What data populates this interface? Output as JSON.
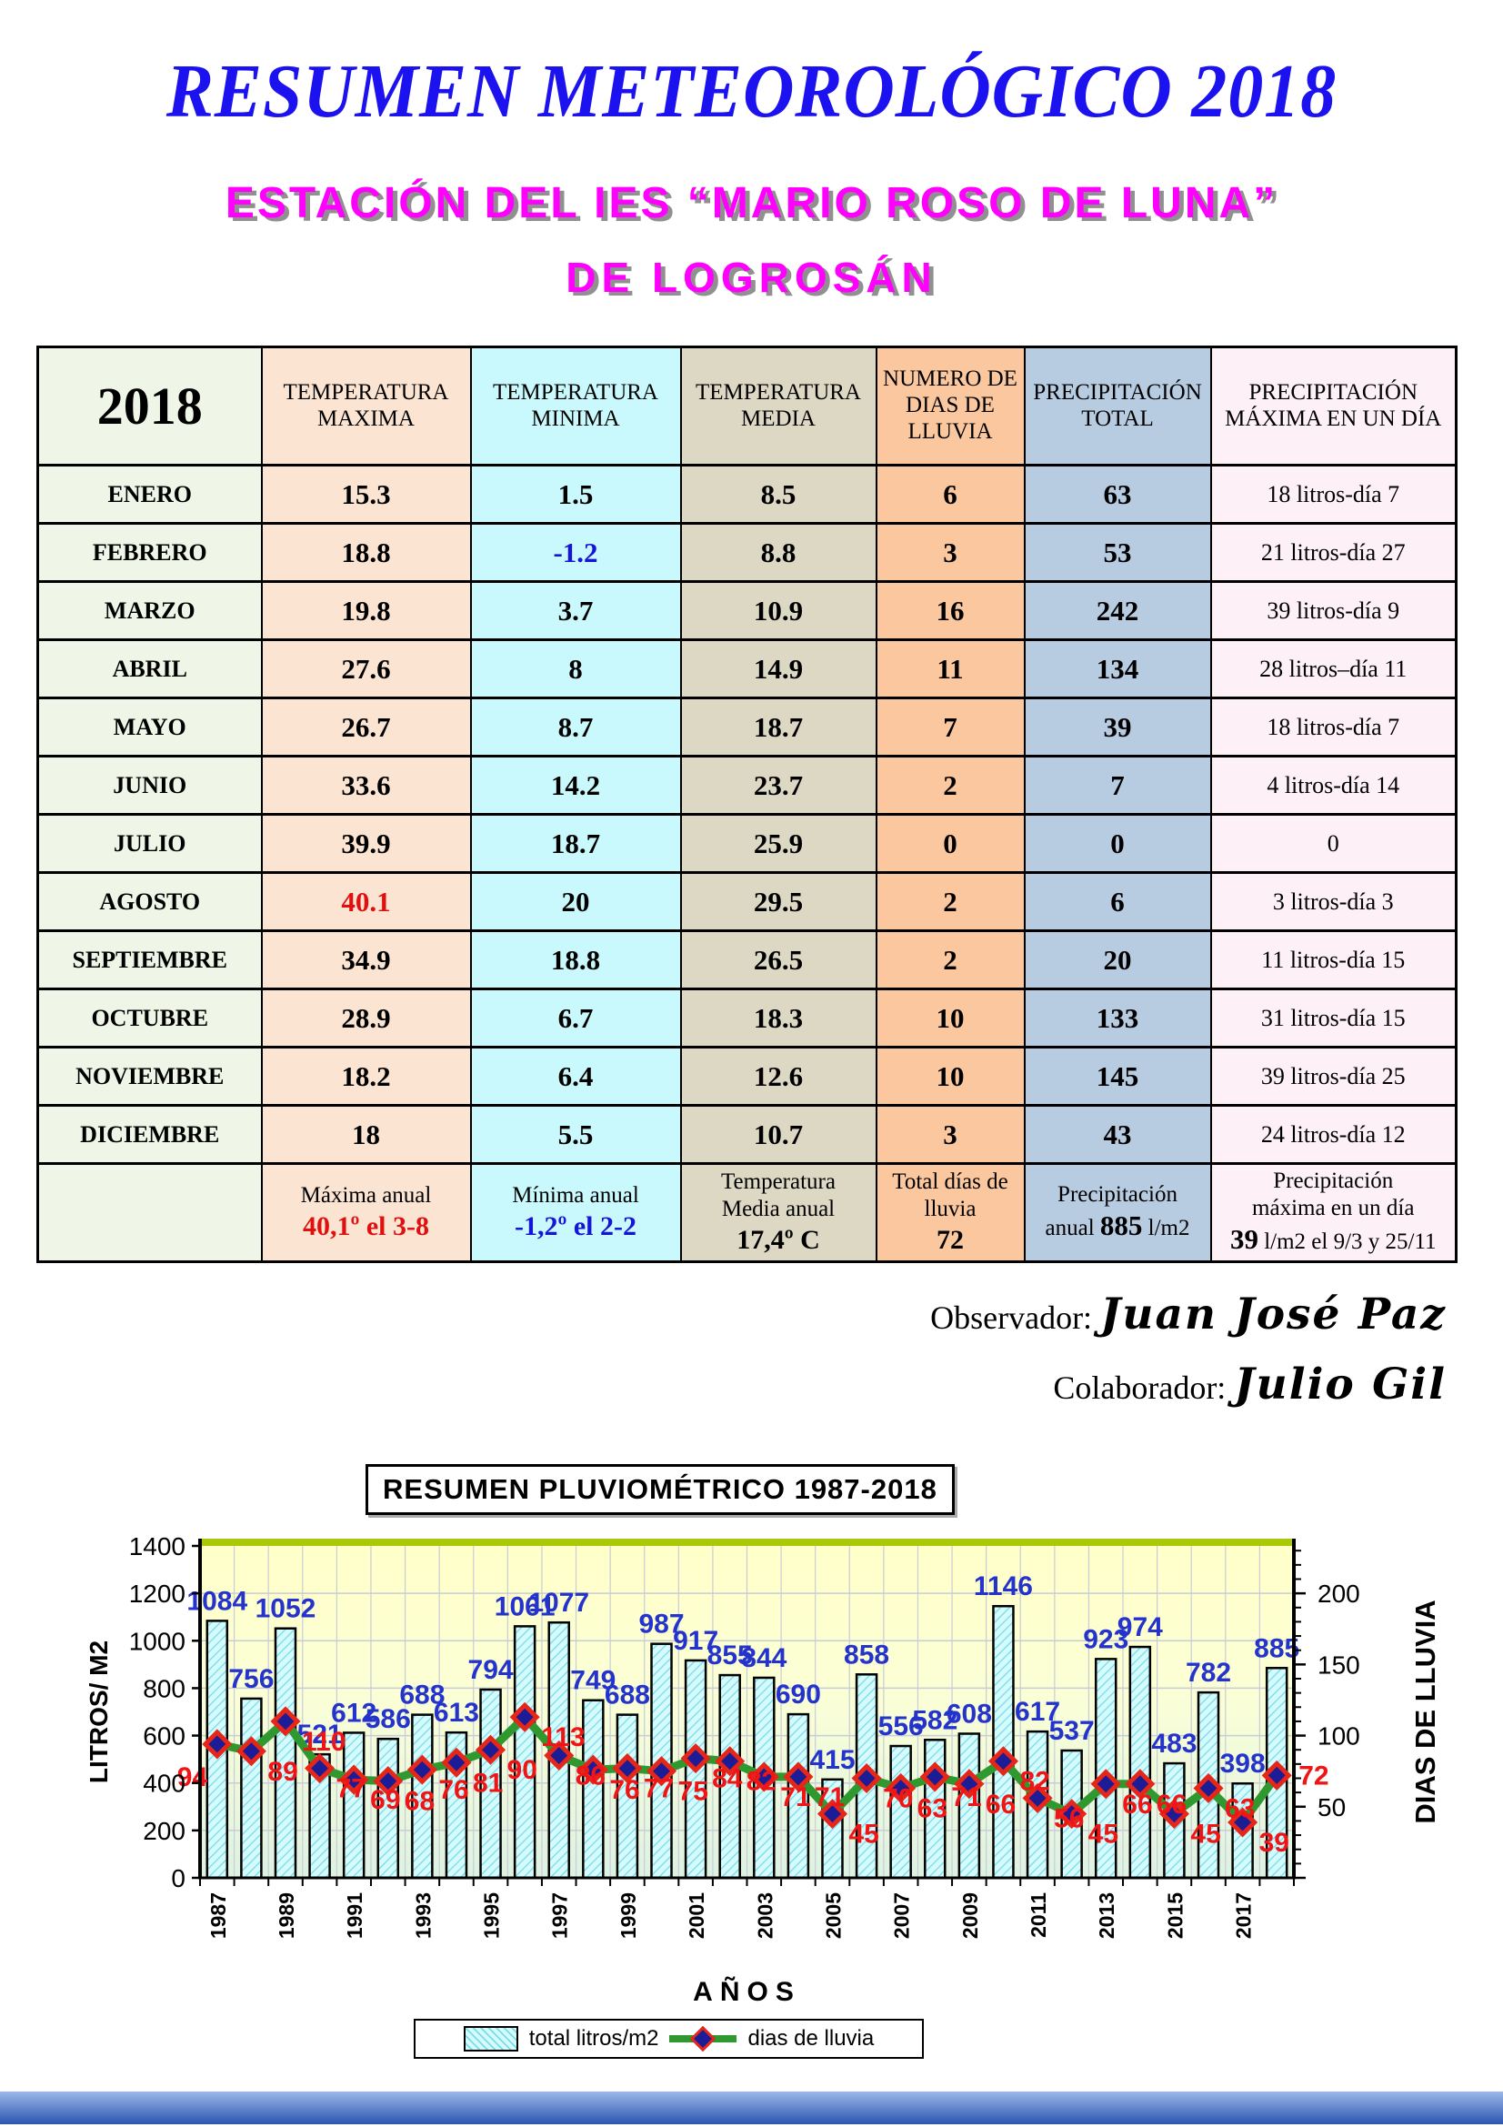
{
  "page": {
    "title": "RESUMEN METEOROLÓGICO 2018",
    "subtitle1": "ESTACIÓN DEL IES “MARIO ROSO DE LUNA”",
    "subtitle2": "DE LOGROSÁN",
    "colors": {
      "title_blue": "#1b12ef",
      "subtitle_magenta": "#ff00ff",
      "accent_red": "#e01010",
      "accent_blue": "#1515d8"
    }
  },
  "table": {
    "year_label": "2018",
    "columns": [
      {
        "key": "month",
        "header": "2018",
        "bg": "#f0f6e7"
      },
      {
        "key": "max",
        "header": "TEMPERATURA MAXIMA",
        "bg": "#fbe5d2"
      },
      {
        "key": "min",
        "header": "TEMPERATURA MINIMA",
        "bg": "#c9f9fc"
      },
      {
        "key": "media",
        "header": "TEMPERATURA MEDIA",
        "bg": "#dcd8c4"
      },
      {
        "key": "dias",
        "header": "NUMERO DE DIAS DE LLUVIA",
        "bg": "#fac79e"
      },
      {
        "key": "total",
        "header": "PRECIPITACIÓN TOTAL",
        "bg": "#b7cbe1"
      },
      {
        "key": "pmax",
        "header": "PRECIPITACIÓN MÁXIMA EN UN DÍA",
        "bg": "#fdf0f6"
      }
    ],
    "rows": [
      {
        "month": "ENERO",
        "max": "15.3",
        "min": "1.5",
        "media": "8.5",
        "dias": "6",
        "total": "63",
        "pmax": "18 litros-día 7"
      },
      {
        "month": "FEBRERO",
        "max": "18.8",
        "min": "-1.2",
        "min_color": "#1515d8",
        "media": "8.8",
        "dias": "3",
        "total": "53",
        "pmax": "21 litros-día 27"
      },
      {
        "month": "MARZO",
        "max": "19.8",
        "min": "3.7",
        "media": "10.9",
        "dias": "16",
        "total": "242",
        "pmax": "39 litros-día 9"
      },
      {
        "month": "ABRIL",
        "max": "27.6",
        "min": "8",
        "media": "14.9",
        "dias": "11",
        "total": "134",
        "pmax": "28 litros–día 11"
      },
      {
        "month": "MAYO",
        "max": "26.7",
        "min": "8.7",
        "media": "18.7",
        "dias": "7",
        "total": "39",
        "pmax": "18 litros-día 7"
      },
      {
        "month": "JUNIO",
        "max": "33.6",
        "min": "14.2",
        "media": "23.7",
        "dias": "2",
        "total": "7",
        "pmax": "4 litros-día 14"
      },
      {
        "month": "JULIO",
        "max": "39.9",
        "min": "18.7",
        "media": "25.9",
        "dias": "0",
        "total": "0",
        "pmax": "0"
      },
      {
        "month": "AGOSTO",
        "max": "40.1",
        "max_color": "#e01010",
        "min": "20",
        "media": "29.5",
        "dias": "2",
        "total": "6",
        "pmax": "3 litros-día 3"
      },
      {
        "month": "SEPTIEMBRE",
        "max": "34.9",
        "min": "18.8",
        "media": "26.5",
        "dias": "2",
        "total": "20",
        "pmax": "11 litros-día 15"
      },
      {
        "month": "OCTUBRE",
        "max": "28.9",
        "min": "6.7",
        "media": "18.3",
        "dias": "10",
        "total": "133",
        "pmax": "31 litros-día 15"
      },
      {
        "month": "NOVIEMBRE",
        "max": "18.2",
        "min": "6.4",
        "media": "12.6",
        "dias": "10",
        "total": "145",
        "pmax": "39 litros-día 25"
      },
      {
        "month": "DICIEMBRE",
        "max": "18",
        "min": "5.5",
        "media": "10.7",
        "dias": "3",
        "total": "43",
        "pmax": "24 litros-día 12"
      }
    ],
    "footer": [
      {
        "label_lines": [],
        "value": ""
      },
      {
        "label_lines": [
          "Máxima anual"
        ],
        "value": "40,1º el 3-8",
        "value_color": "#e01010"
      },
      {
        "label_lines": [
          "Mínima anual"
        ],
        "value": "-1,2º el 2-2",
        "value_color": "#1515d8"
      },
      {
        "label_lines": [
          "Temperatura",
          "Media anual"
        ],
        "value": "17,4º C"
      },
      {
        "label_lines": [
          "Total días de",
          "lluvia"
        ],
        "value": "72"
      },
      {
        "label_lines": [
          "Precipitación"
        ],
        "value_rich": "anual **885** l/m2"
      },
      {
        "label_lines": [
          "Precipitación",
          "máxima en  un día"
        ],
        "value_rich": "**39** l/m2 el 9/3 y 25/11"
      }
    ]
  },
  "credits": {
    "observer_label": "Observador:",
    "observer_name": "Juan José Paz",
    "collaborator_label": "Colaborador:",
    "collaborator_name": "Julio Gil"
  },
  "chart_data": {
    "type": "bar+line",
    "title": "RESUMEN PLUVIOMÉTRICO 1987-2018",
    "x": [
      1987,
      1988,
      1989,
      1990,
      1991,
      1992,
      1993,
      1994,
      1995,
      1996,
      1997,
      1998,
      1999,
      2000,
      2001,
      2002,
      2003,
      2004,
      2005,
      2006,
      2007,
      2008,
      2009,
      2010,
      2011,
      2012,
      2013,
      2014,
      2015,
      2016,
      2017,
      2018
    ],
    "series": [
      {
        "name": "total litros/m2",
        "type": "bar",
        "values": [
          1084,
          756,
          1052,
          521,
          612,
          586,
          688,
          613,
          794,
          1061,
          1077,
          749,
          688,
          987,
          917,
          855,
          844,
          690,
          415,
          858,
          556,
          582,
          608,
          1146,
          617,
          537,
          923,
          974,
          483,
          782,
          398,
          885
        ]
      },
      {
        "name": "dias de lluvia",
        "type": "line",
        "values": [
          94,
          89,
          110,
          77,
          69,
          68,
          76,
          81,
          90,
          113,
          86,
          76,
          77,
          75,
          84,
          82,
          71,
          71,
          45,
          70,
          63,
          71,
          66,
          82,
          56,
          45,
          66,
          66,
          45,
          63,
          39,
          72
        ]
      }
    ],
    "xlabel": "AÑOS",
    "ylabel_left": "LITROS/ M2",
    "ylabel_right": "DIAS DE LLUVIA",
    "ylim_left": [
      0,
      1400
    ],
    "ylim_right": [
      0,
      233.33
    ],
    "yticks_left": [
      0,
      200,
      400,
      600,
      800,
      1000,
      1200,
      1400
    ],
    "yticks_right": [
      0,
      50,
      100,
      150,
      200
    ],
    "xticks": [
      "1987",
      "1989",
      "1991",
      "1993",
      "1995",
      "1997",
      "1999",
      "2001",
      "2003",
      "2005",
      "2007",
      "2009",
      "2011",
      "2013",
      "2015",
      "2017"
    ],
    "grid": true,
    "legend_position": "bottom",
    "colors": {
      "bar_fill": "#d6fbfd",
      "bar_hatch": "#79dce8",
      "bar_border": "#000000",
      "line": "#2f992f",
      "marker_fill": "#1c1c96",
      "marker_border": "#e62619",
      "value_label_blue": "#2433cb",
      "value_label_red": "#f11414",
      "plot_top_border": "#a9c805",
      "plot_bg_top": "#ffffc8",
      "plot_bg_bottom": "#ddf2e3",
      "grid_line": "#c9ccd6"
    }
  }
}
